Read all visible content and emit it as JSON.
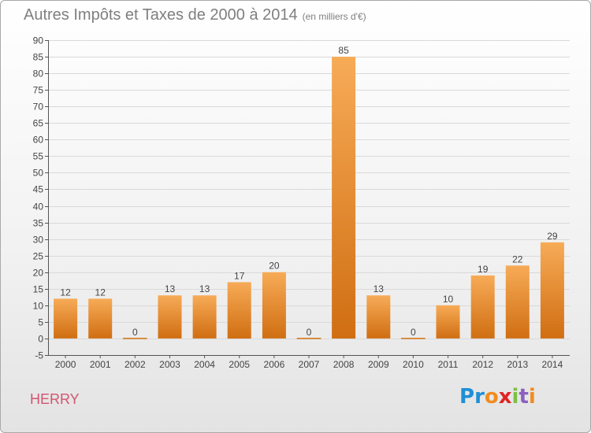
{
  "title": "Autres Impôts et Taxes de 2000 à 2014",
  "title_unit": "(en milliers d'€)",
  "commune": "HERRY",
  "logo_text": "Proxiti",
  "colors": {
    "bar_light": "#f7ab57",
    "bar_dark": "#d06e12",
    "grid": "#d9d9d9",
    "title": "#7f7f7f",
    "commune": "#d2556f"
  },
  "chart_data": {
    "type": "bar",
    "categories": [
      "2000",
      "2001",
      "2002",
      "2003",
      "2004",
      "2005",
      "2006",
      "2007",
      "2008",
      "2009",
      "2010",
      "2011",
      "2012",
      "2013",
      "2014"
    ],
    "values": [
      12,
      12,
      0,
      13,
      13,
      17,
      20,
      0,
      85,
      13,
      0,
      10,
      19,
      22,
      29
    ],
    "title": "Autres Impôts et Taxes de 2000 à 2014",
    "xlabel": "",
    "ylabel": "",
    "ylim": [
      -5,
      90
    ],
    "yticks": [
      -5,
      0,
      5,
      10,
      15,
      20,
      25,
      30,
      35,
      40,
      45,
      50,
      55,
      60,
      65,
      70,
      75,
      80,
      85,
      90
    ],
    "grid": true,
    "legend": "none"
  }
}
